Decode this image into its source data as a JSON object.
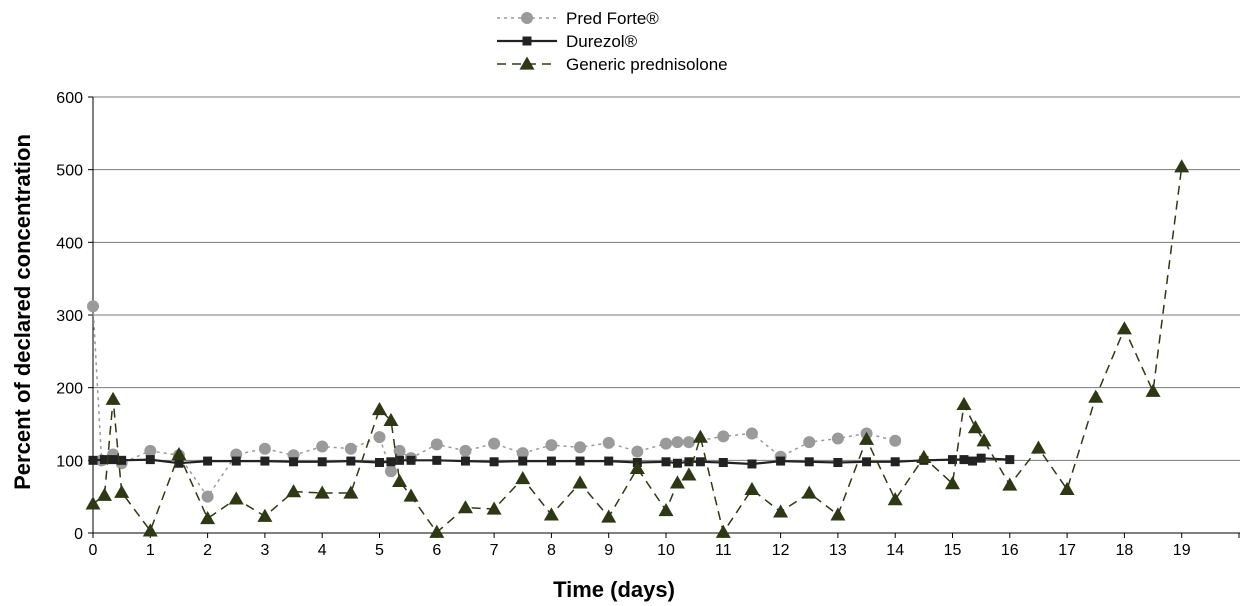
{
  "chart_data": {
    "type": "line",
    "title": "",
    "xlabel": "Time (days)",
    "ylabel": "Percent of declared concentration",
    "xlim": [
      0,
      20
    ],
    "ylim": [
      0,
      600
    ],
    "xticks": [
      0,
      1,
      2,
      3,
      4,
      5,
      6,
      7,
      8,
      9,
      10,
      11,
      12,
      13,
      14,
      15,
      16,
      17,
      18,
      19
    ],
    "yticks": [
      0,
      100,
      200,
      300,
      400,
      500,
      600
    ],
    "grid": "horizontal",
    "legend_position": "top-center",
    "series": [
      {
        "name": "Pred Forte®",
        "color": "#9a9a9a",
        "marker": "circle",
        "line_style": "dotted",
        "points": [
          [
            0,
            312
          ],
          [
            0.15,
            100
          ],
          [
            0.35,
            108
          ],
          [
            0.5,
            96
          ],
          [
            1,
            113
          ],
          [
            1.5,
            107
          ],
          [
            2,
            50
          ],
          [
            2.5,
            108
          ],
          [
            3,
            116
          ],
          [
            3.5,
            107
          ],
          [
            4,
            119
          ],
          [
            4.5,
            116
          ],
          [
            5,
            132
          ],
          [
            5.2,
            85
          ],
          [
            5.35,
            113
          ],
          [
            5.55,
            103
          ],
          [
            6,
            122
          ],
          [
            6.5,
            113
          ],
          [
            7,
            123
          ],
          [
            7.5,
            110
          ],
          [
            8,
            121
          ],
          [
            8.5,
            118
          ],
          [
            9,
            124
          ],
          [
            9.5,
            112
          ],
          [
            10,
            123
          ],
          [
            10.2,
            125
          ],
          [
            10.4,
            125
          ],
          [
            11,
            133
          ],
          [
            11.5,
            137
          ],
          [
            12,
            105
          ],
          [
            12.5,
            125
          ],
          [
            13,
            130
          ],
          [
            13.5,
            137
          ],
          [
            14,
            127
          ]
        ]
      },
      {
        "name": "Durezol®",
        "color": "#222222",
        "marker": "square",
        "line_style": "solid",
        "points": [
          [
            0,
            100
          ],
          [
            0.2,
            101
          ],
          [
            0.35,
            101
          ],
          [
            0.5,
            100
          ],
          [
            1,
            101
          ],
          [
            1.5,
            96
          ],
          [
            2,
            99
          ],
          [
            2.5,
            99
          ],
          [
            3,
            99
          ],
          [
            3.5,
            98
          ],
          [
            4,
            98
          ],
          [
            4.5,
            99
          ],
          [
            5,
            97
          ],
          [
            5.2,
            98
          ],
          [
            5.35,
            100
          ],
          [
            5.55,
            100
          ],
          [
            6,
            100
          ],
          [
            6.5,
            99
          ],
          [
            7,
            98
          ],
          [
            7.5,
            99
          ],
          [
            8,
            99
          ],
          [
            8.5,
            99
          ],
          [
            9,
            99
          ],
          [
            9.5,
            97
          ],
          [
            10,
            98
          ],
          [
            10.2,
            96
          ],
          [
            10.4,
            98
          ],
          [
            10.6,
            98
          ],
          [
            11,
            97
          ],
          [
            11.5,
            95
          ],
          [
            12,
            99
          ],
          [
            12.5,
            98
          ],
          [
            13,
            97
          ],
          [
            13.5,
            98
          ],
          [
            14,
            98
          ],
          [
            14.5,
            100
          ],
          [
            15,
            101
          ],
          [
            15.2,
            101
          ],
          [
            15.35,
            99
          ],
          [
            15.5,
            103
          ],
          [
            16,
            101
          ]
        ]
      },
      {
        "name": "Generic prednisolone",
        "color": "#2f3815",
        "marker": "triangle",
        "line_style": "dashed",
        "points": [
          [
            0,
            40
          ],
          [
            0.2,
            52
          ],
          [
            0.35,
            184
          ],
          [
            0.5,
            56
          ],
          [
            1,
            3
          ],
          [
            1.5,
            108
          ],
          [
            2,
            20
          ],
          [
            2.5,
            47
          ],
          [
            3,
            23
          ],
          [
            3.5,
            57
          ],
          [
            4,
            55
          ],
          [
            4.5,
            55
          ],
          [
            5,
            170
          ],
          [
            5.2,
            155
          ],
          [
            5.35,
            71
          ],
          [
            5.55,
            51
          ],
          [
            6,
            1
          ],
          [
            6.5,
            35
          ],
          [
            7,
            33
          ],
          [
            7.5,
            75
          ],
          [
            8,
            25
          ],
          [
            8.5,
            69
          ],
          [
            9,
            22
          ],
          [
            9.5,
            89
          ],
          [
            10,
            31
          ],
          [
            10.2,
            69
          ],
          [
            10.4,
            80
          ],
          [
            10.6,
            132
          ],
          [
            11,
            1
          ],
          [
            11.5,
            60
          ],
          [
            12,
            29
          ],
          [
            12.5,
            55
          ],
          [
            13,
            25
          ],
          [
            13.5,
            129
          ],
          [
            14,
            46
          ],
          [
            14.5,
            104
          ],
          [
            15,
            68
          ],
          [
            15.2,
            177
          ],
          [
            15.4,
            145
          ],
          [
            15.55,
            127
          ],
          [
            16,
            66
          ],
          [
            16.5,
            117
          ],
          [
            17,
            60
          ],
          [
            17.5,
            187
          ],
          [
            18,
            281
          ],
          [
            18.5,
            195
          ],
          [
            19,
            504
          ]
        ]
      }
    ]
  }
}
